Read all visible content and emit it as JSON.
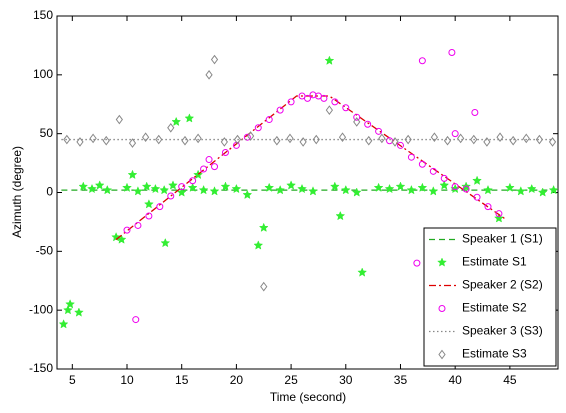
{
  "chart_data": {
    "type": "scatter",
    "xlabel": "Time (second)",
    "ylabel": "Azimuth (degree)",
    "xlim": [
      3.6,
      49.4
    ],
    "ylim": [
      -150,
      150
    ],
    "xticks": [
      5,
      10,
      15,
      20,
      25,
      30,
      35,
      40,
      45
    ],
    "yticks": [
      -150,
      -100,
      -50,
      0,
      50,
      100,
      150
    ],
    "legend": "lower right",
    "series": [
      {
        "name": "Speaker 1 (S1)",
        "color": "#22aa22",
        "linestyle": "dashed",
        "marker": "none",
        "x": [
          4,
          49
        ],
        "values": [
          2,
          2
        ]
      },
      {
        "name": "Estimate S1",
        "color": "#33ee33",
        "linestyle": "none",
        "marker": "star",
        "x": [
          6,
          6.8,
          7.5,
          8.2,
          10,
          11,
          11.8,
          12.6,
          13.4,
          14.2,
          15,
          16,
          17,
          18,
          19,
          20,
          21,
          23,
          24,
          25,
          26,
          27,
          29,
          30,
          31,
          33,
          34,
          35,
          36,
          37,
          38,
          39,
          40,
          41,
          43,
          45,
          46,
          47,
          48,
          49,
          4.2,
          4.6,
          4.8,
          5.6,
          9,
          9.5,
          13.5,
          14.5,
          15.7,
          22,
          22.5,
          28.5,
          31.5,
          29.5,
          12,
          10.5,
          16.5,
          42,
          44
        ],
        "values": [
          5,
          3,
          6,
          2,
          4,
          1,
          5,
          3,
          2,
          6,
          0,
          4,
          2,
          1,
          5,
          3,
          -2,
          4,
          2,
          6,
          3,
          1,
          5,
          2,
          0,
          4,
          3,
          5,
          2,
          4,
          1,
          6,
          3,
          5,
          2,
          4,
          1,
          3,
          0,
          2,
          -112,
          -100,
          -95,
          -102,
          -38,
          -40,
          -43,
          60,
          63,
          -45,
          -30,
          112,
          -68,
          -20,
          -10,
          15,
          15,
          10,
          -22
        ]
      },
      {
        "name": "Speaker 2 (S2)",
        "color": "#dd0000",
        "linestyle": "dashdot",
        "marker": "none",
        "x": [
          9,
          25.5,
          28.5,
          44.5
        ],
        "values": [
          -40,
          82,
          82,
          -22
        ]
      },
      {
        "name": "Estimate S2",
        "color": "#ee00ee",
        "linestyle": "none",
        "marker": "circle",
        "x": [
          10,
          11,
          12,
          13,
          14,
          15,
          16,
          17,
          17.5,
          18,
          19,
          20,
          21,
          22,
          23,
          24,
          25,
          26,
          26.5,
          27,
          27.5,
          28,
          29,
          30,
          31,
          32,
          33,
          34,
          35,
          36,
          37,
          38,
          39,
          40,
          41,
          42,
          43,
          44,
          10.8,
          37,
          39.7,
          41.8,
          36.5,
          40
        ],
        "values": [
          -32,
          -28,
          -20,
          -12,
          -3,
          5,
          10,
          20,
          28,
          22,
          34,
          40,
          47,
          55,
          62,
          70,
          77,
          82,
          80,
          83,
          82,
          80,
          77,
          72,
          64,
          58,
          52,
          44,
          40,
          30,
          24,
          18,
          12,
          5,
          3,
          -4,
          -12,
          -18,
          -108,
          112,
          119,
          68,
          -60,
          50
        ]
      },
      {
        "name": "Speaker 3 (S3)",
        "color": "#888888",
        "linestyle": "dotted",
        "marker": "none",
        "x": [
          4,
          49
        ],
        "values": [
          45,
          45
        ]
      },
      {
        "name": "Estimate S3",
        "color": "#888888",
        "linestyle": "none",
        "marker": "diamond",
        "x": [
          4.5,
          5.7,
          6.9,
          8.1,
          10.5,
          11.7,
          12.9,
          15.3,
          16.5,
          18.9,
          20.1,
          21.3,
          23.7,
          24.9,
          26.1,
          27.3,
          29.7,
          32.1,
          33.3,
          34.5,
          35.7,
          38.1,
          39.3,
          40.5,
          41.7,
          42.9,
          44.1,
          45.3,
          46.5,
          47.7,
          48.9,
          9.3,
          17.5,
          18,
          22.5,
          14,
          31,
          28.5
        ],
        "values": [
          45,
          43,
          46,
          44,
          42,
          47,
          45,
          44,
          46,
          43,
          45,
          48,
          44,
          46,
          43,
          45,
          47,
          44,
          46,
          43,
          45,
          47,
          44,
          46,
          45,
          43,
          47,
          44,
          46,
          45,
          43,
          62,
          100,
          113,
          -80,
          55,
          60,
          70
        ]
      }
    ]
  }
}
